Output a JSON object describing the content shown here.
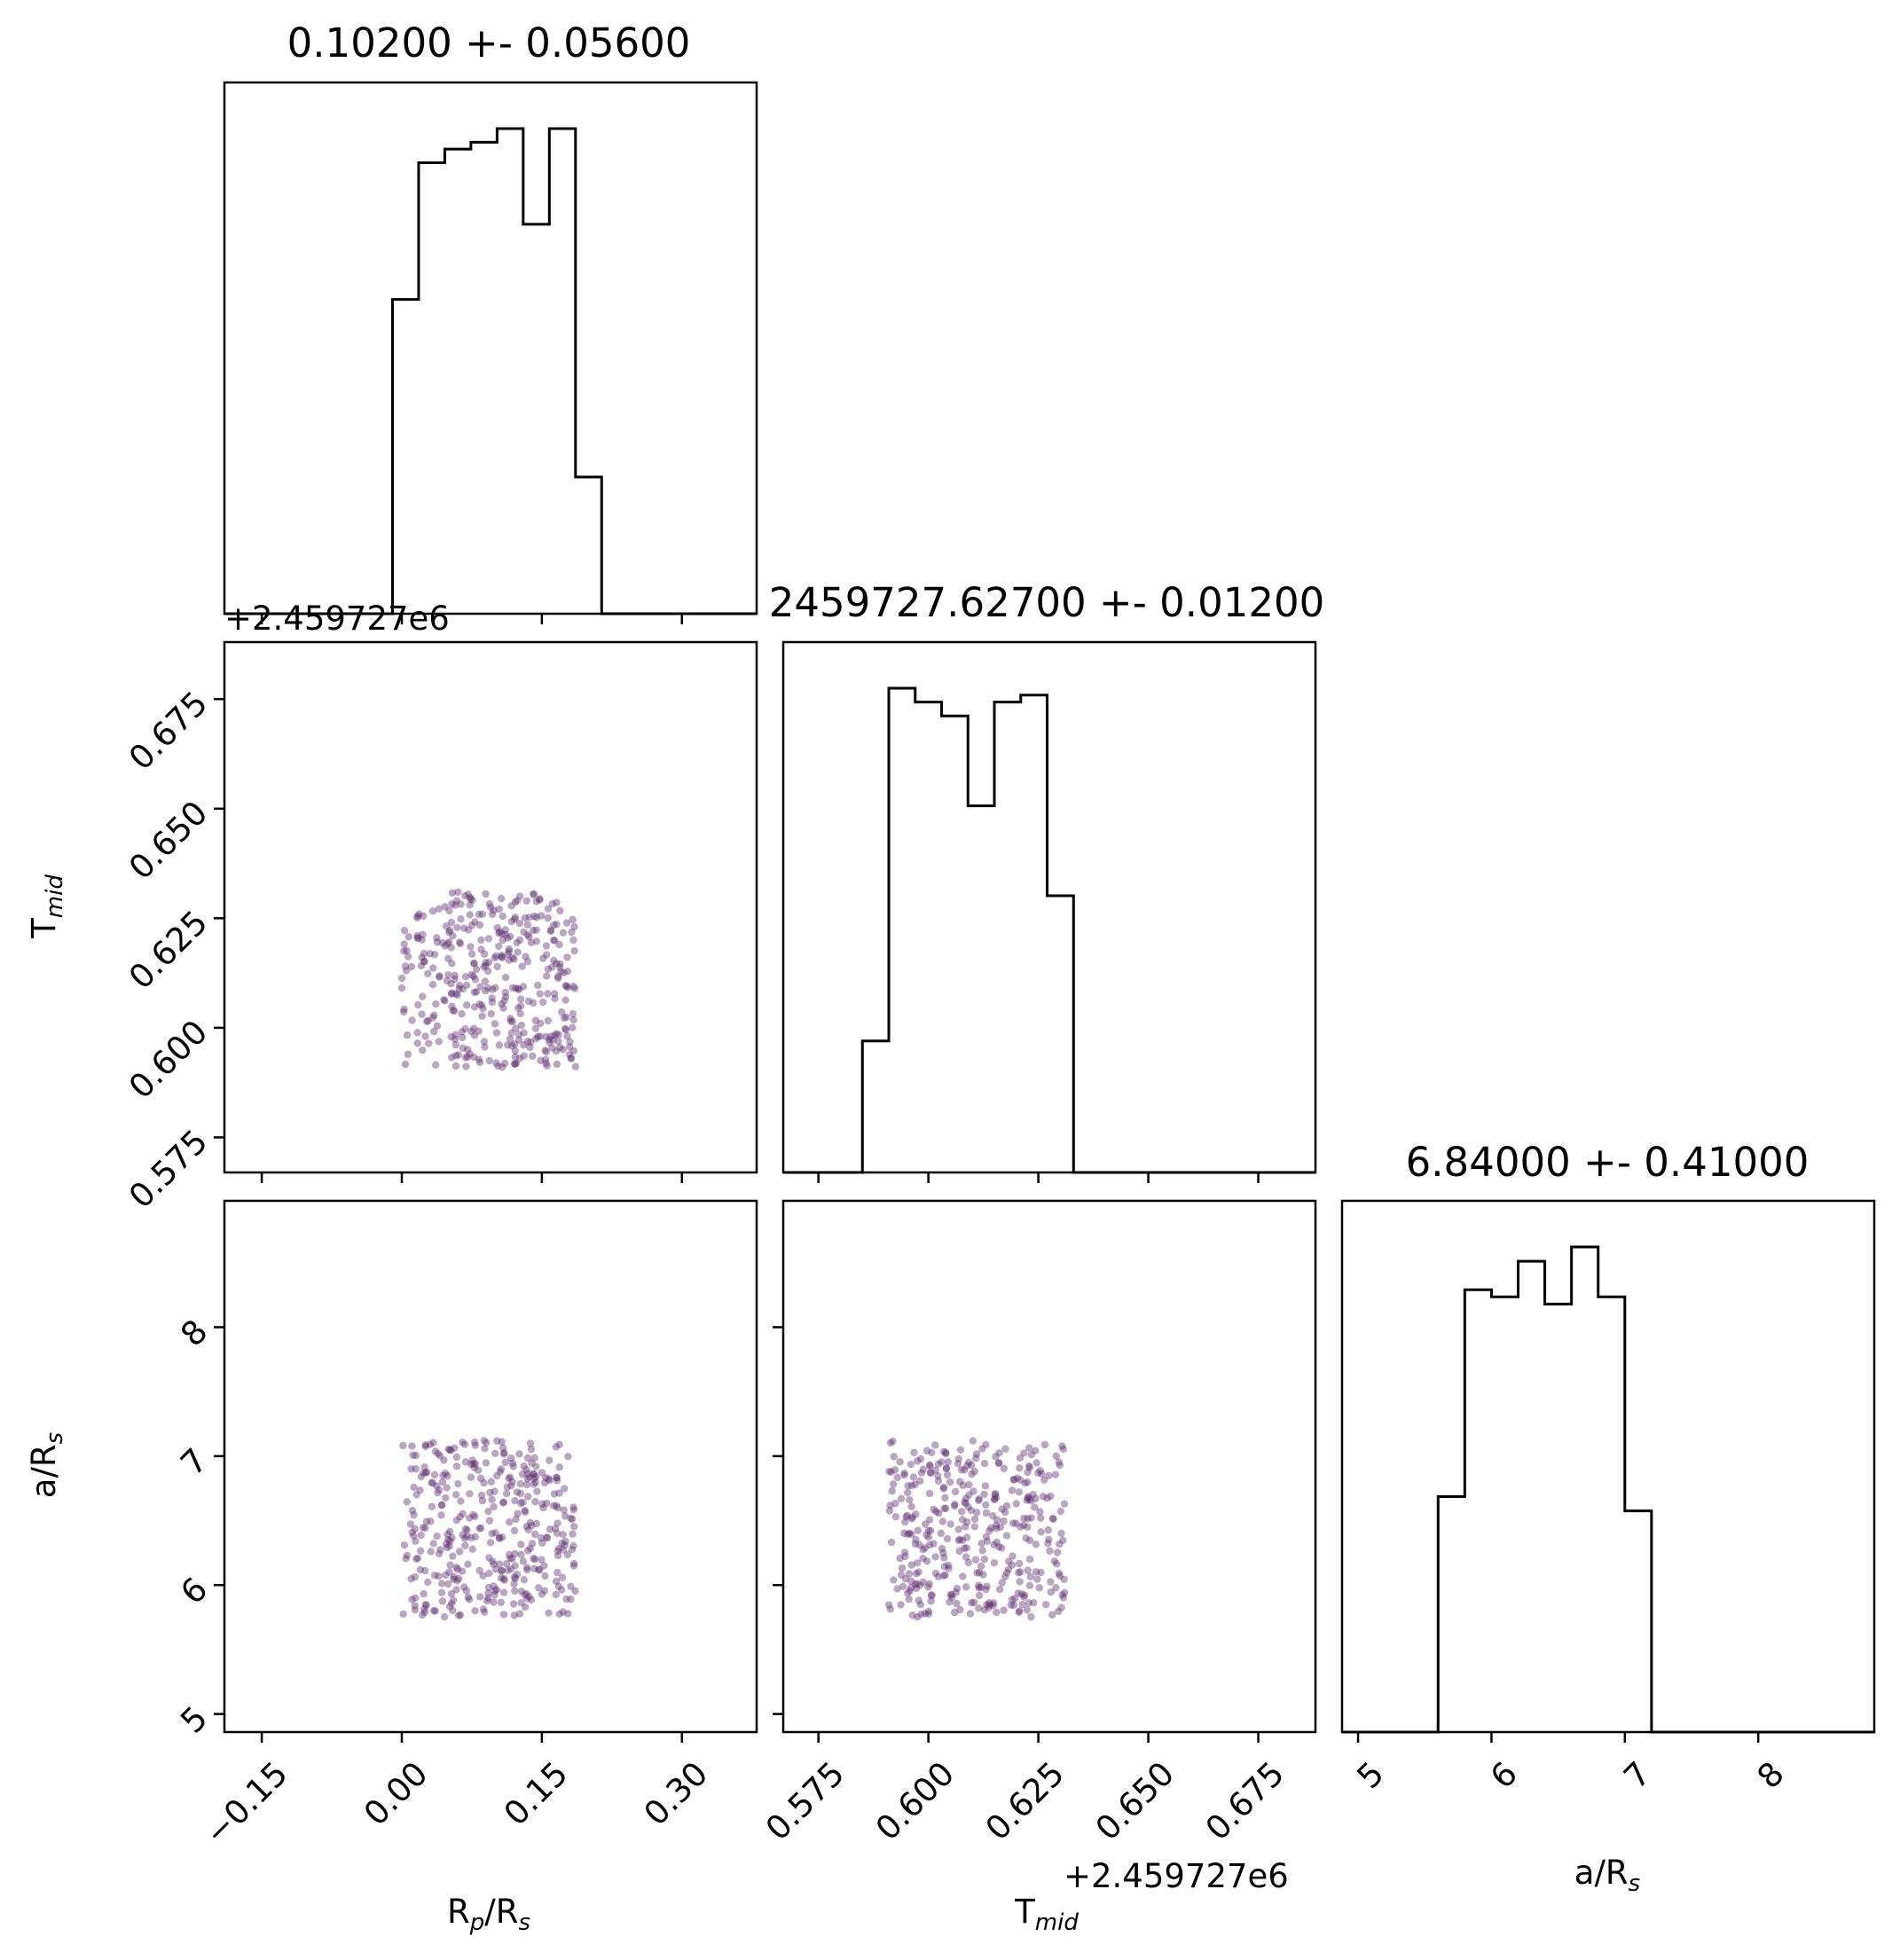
{
  "chart_data": [
    {
      "type": "histogram",
      "panel": "hist-rp",
      "title": "0.10200 +- 0.05600",
      "xlim": [
        -0.19,
        0.38
      ],
      "x_ticks": [
        -0.15,
        0.0,
        0.15,
        0.3
      ],
      "bin_edges": [
        -0.01,
        0.018,
        0.046,
        0.074,
        0.102,
        0.13,
        0.158,
        0.186,
        0.214
      ],
      "counts": [
        46,
        66,
        68,
        69,
        71,
        57,
        71,
        20
      ]
    },
    {
      "type": "histogram",
      "panel": "hist-tmid",
      "title": "2459727.62700 +- 0.01200",
      "xlim": [
        0.567,
        0.688
      ],
      "x_ticks": [
        0.575,
        0.6,
        0.625,
        0.65,
        0.675
      ],
      "offset": "+2.459727e6",
      "bin_edges": [
        0.585,
        0.591,
        0.597,
        0.603,
        0.609,
        0.615,
        0.621,
        0.627,
        0.633
      ],
      "counts": [
        19,
        70,
        68,
        66,
        53,
        68,
        69,
        40
      ]
    },
    {
      "type": "histogram",
      "panel": "hist-ars",
      "title": "6.84000 +- 0.41000",
      "xlim": [
        4.88,
        8.87
      ],
      "x_ticks": [
        5,
        6,
        7,
        8
      ],
      "bin_edges": [
        5.6,
        5.8,
        6.0,
        6.2,
        6.4,
        6.6,
        6.8,
        7.0,
        7.2
      ],
      "counts": [
        33,
        62,
        61,
        66,
        60,
        68,
        61,
        31
      ]
    },
    {
      "type": "scatter",
      "panel": "scatter-rp-tmid",
      "xlim": [
        -0.19,
        0.38
      ],
      "ylim": [
        0.567,
        0.688
      ],
      "y_ticks": [
        0.575,
        0.6,
        0.625,
        0.65,
        0.675
      ],
      "y_offset": "+2.459727e6",
      "x_range": [
        0.0,
        0.186
      ],
      "y_range": [
        0.591,
        0.631
      ],
      "n_points": 380,
      "color": "#5b2a6e"
    },
    {
      "type": "scatter",
      "panel": "scatter-rp-ars",
      "xlim": [
        -0.19,
        0.38
      ],
      "ylim": [
        4.86,
        8.98
      ],
      "y_ticks": [
        5,
        6,
        7,
        8
      ],
      "x_range": [
        0.0,
        0.186
      ],
      "y_range": [
        5.75,
        7.12
      ],
      "n_points": 380,
      "color": "#5b2a6e"
    },
    {
      "type": "scatter",
      "panel": "scatter-tmid-ars",
      "xlim": [
        0.567,
        0.688
      ],
      "ylim": [
        4.86,
        8.98
      ],
      "x_range": [
        0.591,
        0.631
      ],
      "y_range": [
        5.75,
        7.12
      ],
      "n_points": 380,
      "color": "#5b2a6e"
    }
  ],
  "axis_labels": {
    "x_rp": [
      "R",
      "p",
      "/R",
      "s"
    ],
    "x_tmid": [
      "T",
      "mid"
    ],
    "x_ars": [
      "a/R",
      "s"
    ],
    "y_tmid": [
      "T",
      "mid"
    ],
    "y_ars": [
      "a/R",
      "s"
    ],
    "x_tmid_offset": "+2.459727e6",
    "y_tmid_offset": "+2.459727e6"
  },
  "style": {
    "line_color": "#000000",
    "point_color": "#5b2a6e"
  }
}
